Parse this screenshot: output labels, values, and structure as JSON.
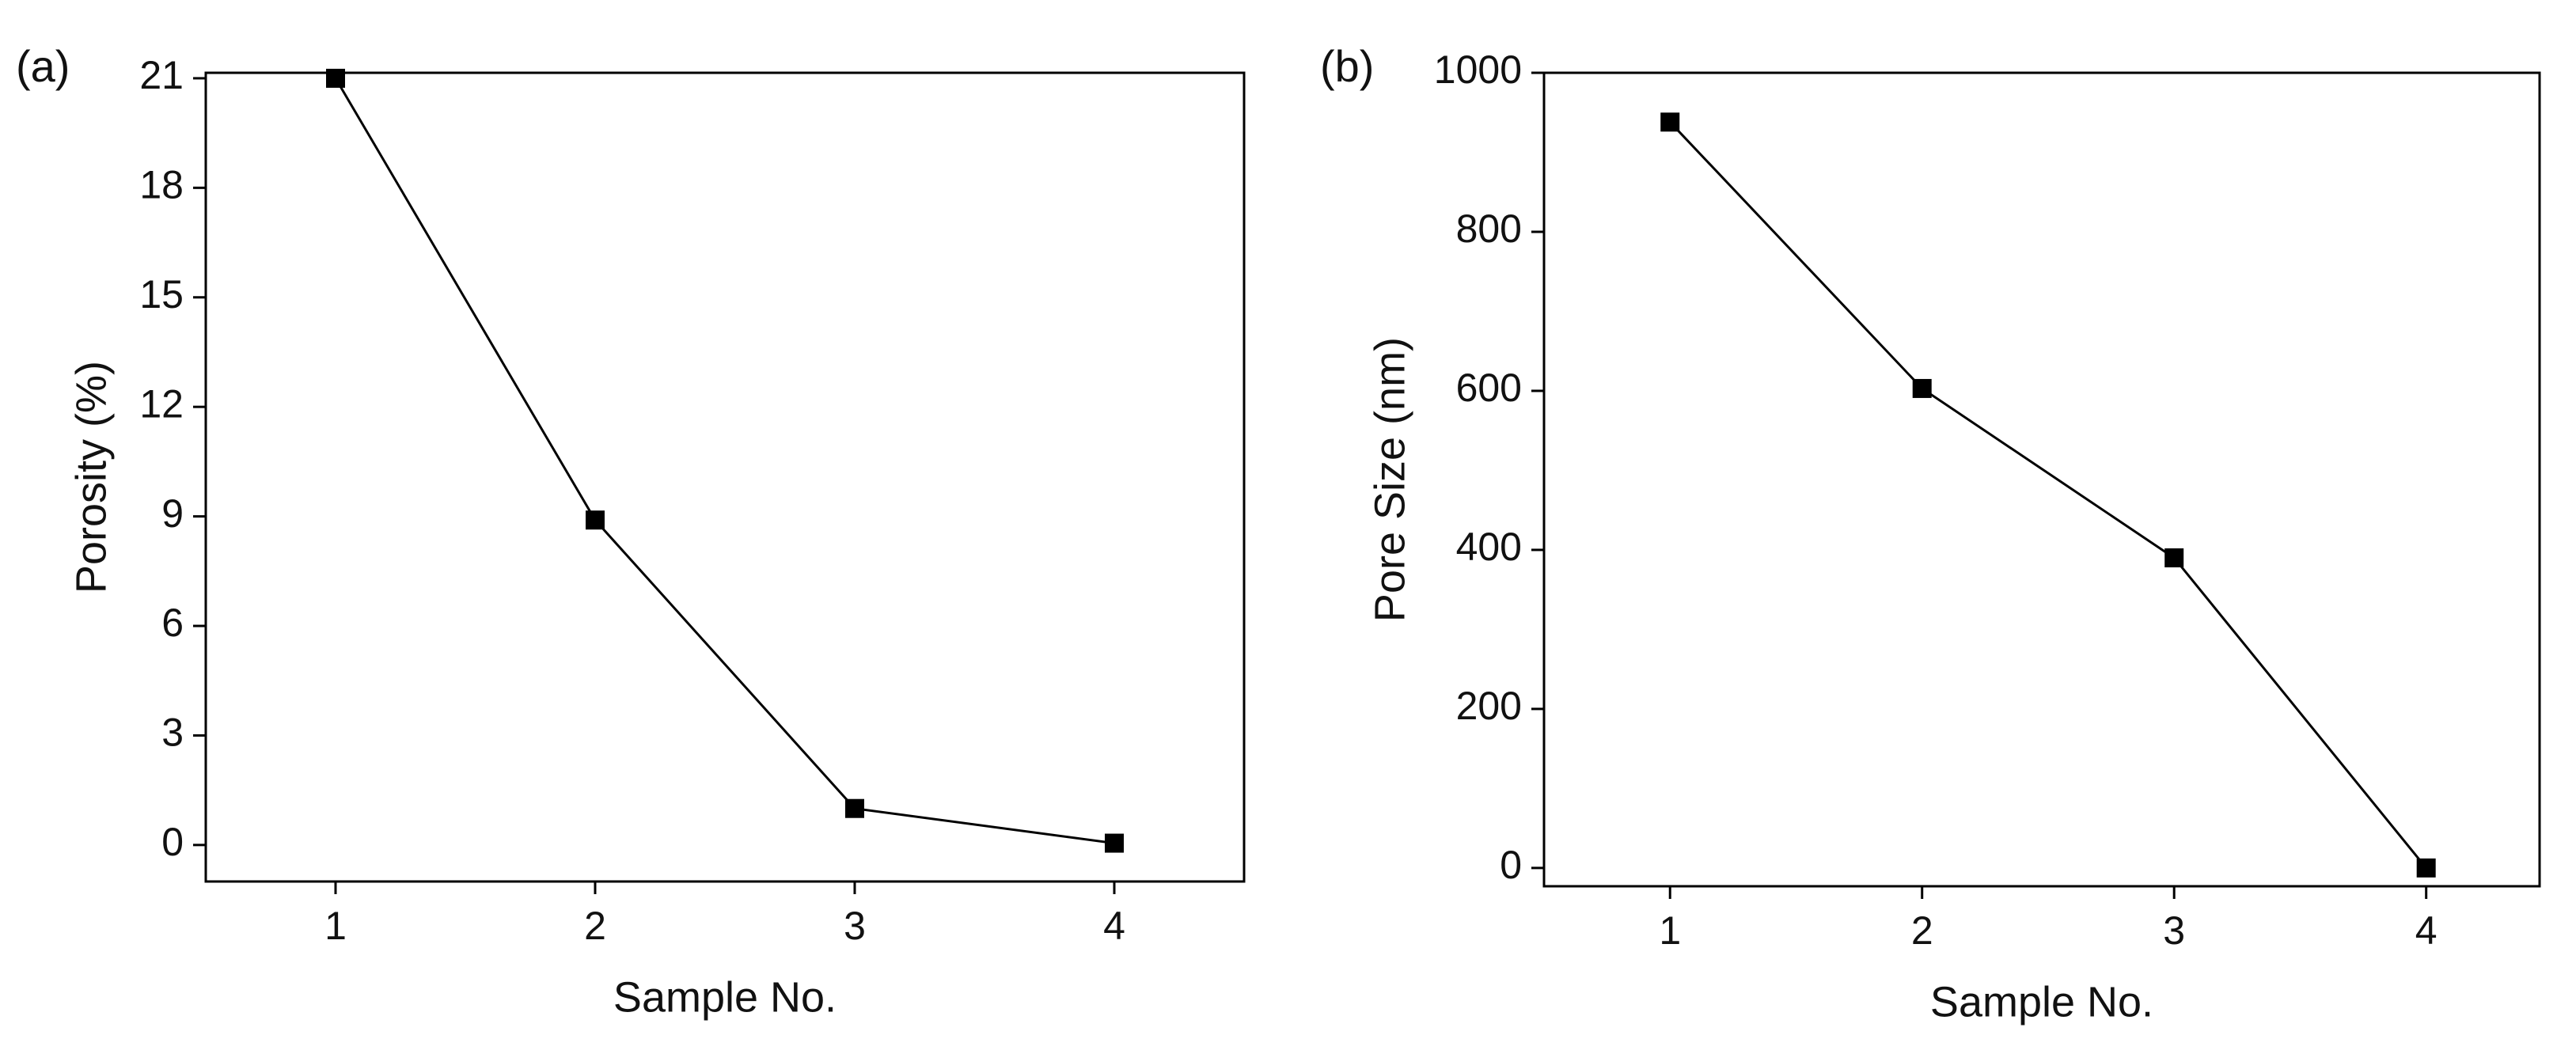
{
  "chart_data": [
    {
      "type": "line",
      "label": "(a)",
      "x_label": "Sample No.",
      "y_label": "Porosity (%)",
      "x": [
        1,
        2,
        3,
        4
      ],
      "values": [
        21,
        8.9,
        1.0,
        0.05
      ],
      "color": "#000000",
      "xlim": [
        0.5,
        4.5
      ],
      "xticks": [
        1,
        2,
        3,
        4
      ],
      "ylim": [
        -1,
        21.15
      ],
      "yticks": [
        0,
        3,
        6,
        9,
        12,
        15,
        18,
        21
      ]
    },
    {
      "type": "line",
      "label": "(b)",
      "x_label": "Sample No.",
      "y_label": "Pore Size (nm)",
      "x": [
        1,
        2,
        3,
        4
      ],
      "values": [
        938,
        603,
        390,
        0
      ],
      "color": "#000000",
      "xlim": [
        0.5,
        4.45
      ],
      "xticks": [
        1,
        2,
        3,
        4
      ],
      "ylim": [
        -23,
        1000
      ],
      "yticks": [
        0,
        200,
        400,
        600,
        800,
        1000
      ]
    }
  ]
}
